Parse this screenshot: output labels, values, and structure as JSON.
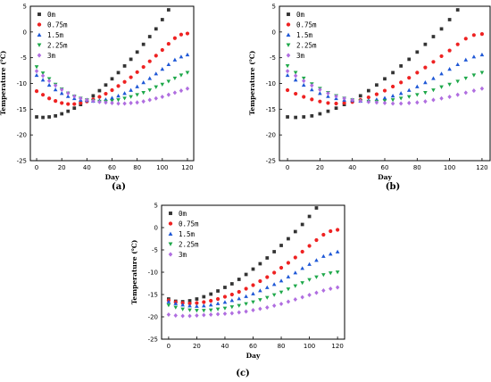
{
  "colors": {
    "0m": "#333333",
    "0.75m": "#ee2222",
    "1.5m": "#1f58d6",
    "2.25m": "#1ea84a",
    "3m": "#b06ee0"
  },
  "chart_data": [
    {
      "type": "scatter",
      "panel_label": "(a)",
      "xlabel": "Day",
      "ylabel": "Temperature (℃)",
      "xlim": [
        -5,
        125
      ],
      "ylim": [
        -25,
        5
      ],
      "xticks": [
        0,
        20,
        40,
        60,
        80,
        100,
        120
      ],
      "yticks": [
        -25,
        -20,
        -15,
        -10,
        -5,
        0,
        5
      ],
      "legend_position": "top-left",
      "x": [
        0,
        5,
        10,
        15,
        20,
        25,
        30,
        35,
        40,
        45,
        50,
        55,
        60,
        65,
        70,
        75,
        80,
        85,
        90,
        95,
        100,
        105,
        110,
        115,
        120
      ],
      "series": [
        {
          "name": "0m",
          "marker": "square",
          "color_key": "0m",
          "values": [
            -16.5,
            -16.6,
            -16.5,
            -16.3,
            -15.9,
            -15.4,
            -14.8,
            -14.1,
            -13.3,
            -12.4,
            -11.4,
            -10.3,
            -9.1,
            -7.9,
            -6.6,
            -5.3,
            -3.9,
            -2.4,
            -0.9,
            0.6,
            2.4,
            4.3,
            null,
            null,
            null
          ]
        },
        {
          "name": "0.75m",
          "marker": "circle",
          "color_key": "0.75m",
          "values": [
            -11.5,
            -12.2,
            -12.9,
            -13.4,
            -13.8,
            -14.0,
            -14.0,
            -13.8,
            -13.5,
            -13.1,
            -12.6,
            -12.0,
            -11.3,
            -10.5,
            -9.7,
            -8.8,
            -7.8,
            -6.8,
            -5.7,
            -4.6,
            -3.5,
            -2.3,
            -1.2,
            -0.5,
            -0.3
          ]
        },
        {
          "name": "1.5m",
          "marker": "triangle-up",
          "color_key": "1.5m",
          "values": [
            -8.4,
            -9.3,
            -10.3,
            -11.2,
            -11.9,
            -12.5,
            -12.9,
            -13.2,
            -13.3,
            -13.4,
            -13.3,
            -13.1,
            -12.8,
            -12.4,
            -11.9,
            -11.3,
            -10.6,
            -9.8,
            -9.0,
            -8.1,
            -7.2,
            -6.3,
            -5.4,
            -4.8,
            -4.4
          ]
        },
        {
          "name": "2.25m",
          "marker": "triangle-down",
          "color_key": "2.25m",
          "values": [
            -6.8,
            -8.0,
            -9.1,
            -10.2,
            -11.1,
            -11.9,
            -12.5,
            -12.9,
            -13.2,
            -13.4,
            -13.5,
            -13.5,
            -13.4,
            -13.2,
            -12.9,
            -12.6,
            -12.2,
            -11.8,
            -11.3,
            -10.7,
            -10.2,
            -9.6,
            -9.0,
            -8.4,
            -7.9
          ]
        },
        {
          "name": "3m",
          "marker": "diamond",
          "color_key": "3m",
          "values": [
            -7.6,
            -8.5,
            -9.5,
            -10.4,
            -11.2,
            -11.9,
            -12.5,
            -12.9,
            -13.2,
            -13.4,
            -13.6,
            -13.7,
            -13.8,
            -13.9,
            -13.9,
            -13.8,
            -13.7,
            -13.5,
            -13.2,
            -12.9,
            -12.6,
            -12.2,
            -11.8,
            -11.4,
            -11.0
          ]
        }
      ]
    },
    {
      "type": "scatter",
      "panel_label": "(b)",
      "xlabel": "Day",
      "ylabel": "Temperature (℃)",
      "xlim": [
        -5,
        125
      ],
      "ylim": [
        -25,
        5
      ],
      "xticks": [
        0,
        20,
        40,
        60,
        80,
        100,
        120
      ],
      "yticks": [
        -25,
        -20,
        -15,
        -10,
        -5,
        0,
        5
      ],
      "legend_position": "top-left",
      "x": [
        0,
        5,
        10,
        15,
        20,
        25,
        30,
        35,
        40,
        45,
        50,
        55,
        60,
        65,
        70,
        75,
        80,
        85,
        90,
        95,
        100,
        105,
        110,
        115,
        120
      ],
      "series": [
        {
          "name": "0m",
          "marker": "square",
          "color_key": "0m",
          "values": [
            -16.5,
            -16.6,
            -16.5,
            -16.3,
            -15.9,
            -15.4,
            -14.8,
            -14.1,
            -13.3,
            -12.4,
            -11.4,
            -10.3,
            -9.1,
            -7.9,
            -6.6,
            -5.3,
            -3.9,
            -2.4,
            -0.9,
            0.6,
            2.4,
            4.3,
            null,
            null,
            null
          ]
        },
        {
          "name": "0.75m",
          "marker": "circle",
          "color_key": "0.75m",
          "values": [
            -11.3,
            -12.0,
            -12.6,
            -13.1,
            -13.5,
            -13.8,
            -13.9,
            -13.8,
            -13.6,
            -13.2,
            -12.7,
            -12.1,
            -11.4,
            -10.6,
            -9.8,
            -8.9,
            -7.9,
            -6.9,
            -5.8,
            -4.7,
            -3.6,
            -2.4,
            -1.3,
            -0.6,
            -0.4
          ]
        },
        {
          "name": "1.5m",
          "marker": "triangle-up",
          "color_key": "1.5m",
          "values": [
            -8.4,
            -9.3,
            -10.3,
            -11.2,
            -11.9,
            -12.5,
            -12.9,
            -13.2,
            -13.3,
            -13.4,
            -13.3,
            -13.1,
            -12.8,
            -12.4,
            -11.9,
            -11.3,
            -10.6,
            -9.8,
            -9.0,
            -8.1,
            -7.2,
            -6.3,
            -5.4,
            -4.8,
            -4.4
          ]
        },
        {
          "name": "2.25m",
          "marker": "triangle-down",
          "color_key": "2.25m",
          "values": [
            -6.6,
            -7.9,
            -9.0,
            -10.1,
            -11.0,
            -11.8,
            -12.4,
            -12.9,
            -13.2,
            -13.4,
            -13.5,
            -13.5,
            -13.4,
            -13.2,
            -12.9,
            -12.6,
            -12.2,
            -11.8,
            -11.3,
            -10.7,
            -10.2,
            -9.6,
            -9.0,
            -8.4,
            -7.9
          ]
        },
        {
          "name": "3m",
          "marker": "diamond",
          "color_key": "3m",
          "values": [
            -7.6,
            -8.5,
            -9.5,
            -10.4,
            -11.2,
            -11.9,
            -12.5,
            -12.9,
            -13.2,
            -13.4,
            -13.6,
            -13.7,
            -13.8,
            -13.9,
            -13.9,
            -13.8,
            -13.7,
            -13.5,
            -13.2,
            -12.9,
            -12.6,
            -12.2,
            -11.8,
            -11.4,
            -11.0
          ]
        }
      ]
    },
    {
      "type": "scatter",
      "panel_label": "(c)",
      "xlabel": "Day",
      "ylabel": "Temperature (℃)",
      "xlim": [
        -5,
        125
      ],
      "ylim": [
        -25,
        5
      ],
      "xticks": [
        0,
        20,
        40,
        60,
        80,
        100,
        120
      ],
      "yticks": [
        -25,
        -20,
        -15,
        -10,
        -5,
        0,
        5
      ],
      "legend_position": "top-left",
      "x": [
        0,
        5,
        10,
        15,
        20,
        25,
        30,
        35,
        40,
        45,
        50,
        55,
        60,
        65,
        70,
        75,
        80,
        85,
        90,
        95,
        100,
        105,
        110,
        115,
        120
      ],
      "series": [
        {
          "name": "0m",
          "marker": "square",
          "color_key": "0m",
          "values": [
            -16.0,
            -16.5,
            -16.6,
            -16.4,
            -16.0,
            -15.5,
            -14.9,
            -14.2,
            -13.4,
            -12.6,
            -11.6,
            -10.5,
            -9.3,
            -8.1,
            -6.8,
            -5.4,
            -4.0,
            -2.5,
            -0.9,
            0.7,
            2.5,
            4.4,
            null,
            null,
            null
          ]
        },
        {
          "name": "0.75m",
          "marker": "circle",
          "color_key": "0.75m",
          "values": [
            -16.3,
            -16.7,
            -16.9,
            -17.0,
            -16.9,
            -16.7,
            -16.4,
            -16.0,
            -15.5,
            -15.0,
            -14.4,
            -13.7,
            -12.9,
            -12.0,
            -11.1,
            -10.1,
            -9.0,
            -7.9,
            -6.7,
            -5.4,
            -4.1,
            -2.8,
            -1.6,
            -0.8,
            -0.5
          ]
        },
        {
          "name": "1.5m",
          "marker": "triangle-up",
          "color_key": "1.5m",
          "values": [
            -16.6,
            -17.0,
            -17.3,
            -17.5,
            -17.6,
            -17.5,
            -17.3,
            -17.0,
            -16.7,
            -16.3,
            -15.9,
            -15.4,
            -14.8,
            -14.1,
            -13.4,
            -12.7,
            -11.9,
            -11.0,
            -10.1,
            -9.1,
            -8.2,
            -7.3,
            -6.4,
            -5.9,
            -5.4
          ]
        },
        {
          "name": "2.25m",
          "marker": "triangle-down",
          "color_key": "2.25m",
          "values": [
            -17.4,
            -17.9,
            -18.3,
            -18.5,
            -18.6,
            -18.6,
            -18.5,
            -18.3,
            -18.1,
            -17.8,
            -17.5,
            -17.1,
            -16.7,
            -16.2,
            -15.7,
            -15.1,
            -14.5,
            -13.8,
            -13.1,
            -12.4,
            -11.7,
            -11.1,
            -10.6,
            -10.2,
            -10.0
          ]
        },
        {
          "name": "3m",
          "marker": "diamond",
          "color_key": "3m",
          "values": [
            -19.5,
            -19.7,
            -19.8,
            -19.8,
            -19.7,
            -19.6,
            -19.5,
            -19.4,
            -19.3,
            -19.2,
            -19.0,
            -18.8,
            -18.5,
            -18.2,
            -17.9,
            -17.5,
            -17.1,
            -16.6,
            -16.1,
            -15.6,
            -15.1,
            -14.6,
            -14.1,
            -13.7,
            -13.4
          ]
        }
      ]
    }
  ]
}
